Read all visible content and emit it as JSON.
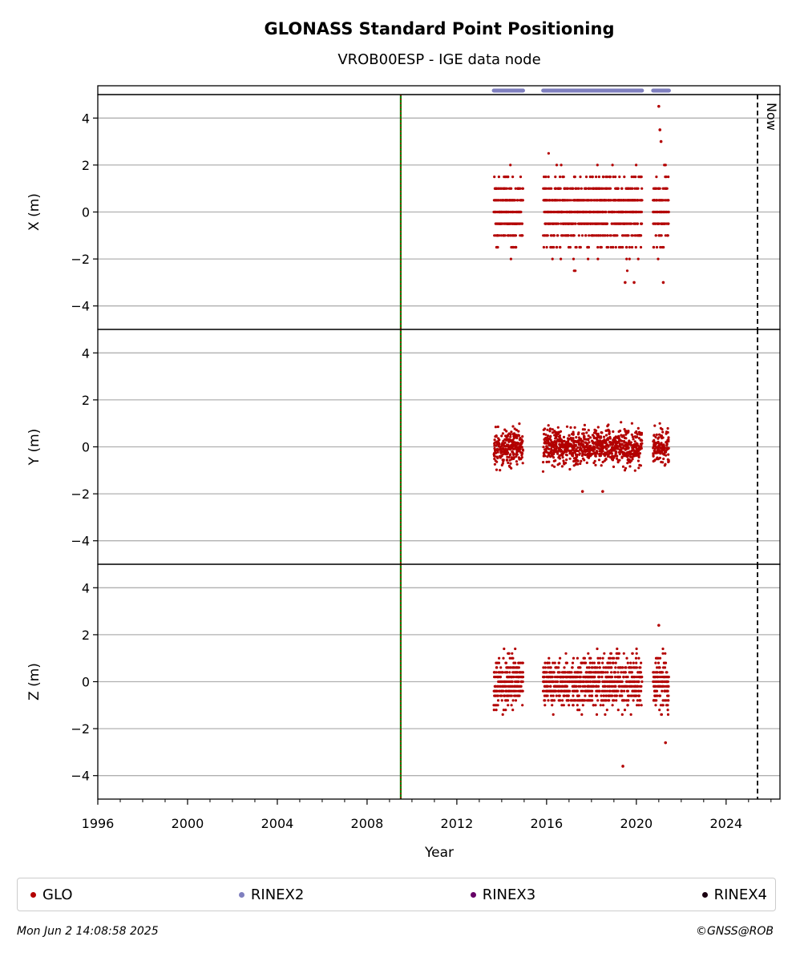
{
  "chart_data": {
    "type": "scatter",
    "title": "GLONASS Standard Point Positioning",
    "subtitle": "VROB00ESP - IGE data node",
    "xlabel": "Year",
    "xlim": [
      1996,
      2026.4
    ],
    "x_ticks": [
      1996,
      2000,
      2004,
      2008,
      2012,
      2016,
      2020,
      2024
    ],
    "x_tick_labels": [
      "1996",
      "2000",
      "2004",
      "2008",
      "2012",
      "2016",
      "2020",
      "2024"
    ],
    "ylim": [
      -5,
      5
    ],
    "y_ticks": [
      -4,
      -2,
      0,
      2,
      4
    ],
    "y_tick_labels": [
      "−4",
      "−2",
      "0",
      "2",
      "4"
    ],
    "grid": true,
    "panels": [
      {
        "ylabel": "X (m)",
        "quantize": 0.5,
        "sigma": 0.8
      },
      {
        "ylabel": "Y (m)",
        "quantize": 0,
        "sigma": 0.38
      },
      {
        "ylabel": "Z (m)",
        "quantize": 0.2,
        "sigma": 0.55
      }
    ],
    "data_segments": [
      {
        "start": 2013.65,
        "end": 2014.95
      },
      {
        "start": 2015.85,
        "end": 2020.25
      },
      {
        "start": 2020.75,
        "end": 2021.45
      }
    ],
    "rinex2_availability": [
      [
        2013.65,
        2014.95
      ],
      [
        2015.85,
        2020.25
      ],
      [
        2020.75,
        2021.45
      ]
    ],
    "reference_line_x": 2009.5,
    "now_x": 2025.4,
    "now_label": "Now",
    "notable_points": {
      "X": [
        [
          2021.0,
          4.5
        ],
        [
          2021.05,
          3.5
        ],
        [
          2021.1,
          3.0
        ],
        [
          2021.2,
          -3.0
        ],
        [
          2019.5,
          -3.0
        ],
        [
          2019.9,
          -3.0
        ]
      ],
      "Y": [
        [
          2017.6,
          -1.9
        ],
        [
          2018.5,
          -1.9
        ]
      ],
      "Z": [
        [
          2021.0,
          2.4
        ],
        [
          2019.4,
          -3.6
        ],
        [
          2021.3,
          -2.6
        ]
      ]
    },
    "colors": {
      "glo": "#b30000",
      "rinex2": "#7f7fbf",
      "rinex3": "#660066",
      "rinex4": "#1a0010",
      "reference_green": "#008000",
      "reference_red": "#cc0000",
      "grid": "#b0b0b0"
    }
  },
  "legend": [
    {
      "label": "GLO",
      "color": "#b30000"
    },
    {
      "label": "RINEX2",
      "color": "#7f7fbf"
    },
    {
      "label": "RINEX3",
      "color": "#660066"
    },
    {
      "label": "RINEX4",
      "color": "#1a0010"
    }
  ],
  "footer": {
    "timestamp": "Mon Jun  2 14:08:58 2025",
    "copyright": "©GNSS@ROB"
  }
}
